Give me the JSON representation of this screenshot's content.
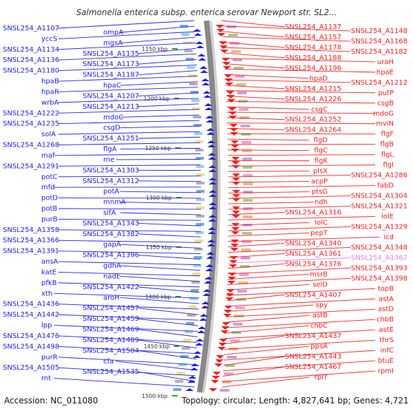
{
  "title": "Salmonella enterica subsp. enterica serovar Newport str. SL2...",
  "footer": {
    "accession": "Accession: NC_011080",
    "summary": "Topology: circular; Length: 4,827,641 bp; Genes: 4,721"
  },
  "colors": {
    "left_strand": "#1a1aff",
    "right_strand": "#ff1a1a",
    "pink_label": "#e080e0",
    "backbone": "#888888",
    "tick": "#2a9a2a"
  },
  "icons": [
    "plus-strand-arrow",
    "minus-strand-arrow",
    "cog-color-block"
  ],
  "kbp_ticks": [
    "1150 kbp",
    "1200 kbp",
    "1250 kbp",
    "1300 kbp",
    "1350 kbp",
    "1400 kbp",
    "1450 kbp",
    "1500 kbp"
  ],
  "left_labels": [
    "SNSL254_A1107",
    "ompA",
    "yccS",
    "mgsA",
    "SNSL254_A1134",
    "SNSL254_A1135",
    "SNSL254_A1136",
    "SNSL254_A1173",
    "SNSL254_A1180",
    "SNSL254_A1187",
    "hpaB",
    "hpaC",
    "hpaR",
    "SNSL254_A1207",
    "wrbA",
    "SNSL254_A1213",
    "SNSL254_A1222",
    "mdoC",
    "SNSL254_A1235",
    "csgD",
    "solA",
    "SNSL254_A1251",
    "SNSL254_A1268",
    "flgA",
    "maf",
    "rne",
    "SNSL254_A1291",
    "SNSL254_A1303",
    "potC",
    "SNSL254_A1312",
    "mfd",
    "potA",
    "potD",
    "mnmA",
    "potB",
    "sifA",
    "purB",
    "SNSL254_A1343",
    "SNSL254_A1358",
    "SNSL254_A1382",
    "SNSL254_A1366",
    "gapA",
    "SNSL254_A1391",
    "SNSL254_A1396",
    "ansA",
    "gdhA",
    "katE",
    "nadE",
    "pfkB",
    "SNSL254_A1422",
    "xth",
    "aroH",
    "SNSL254_A1436",
    "SNSL254_A1457",
    "SNSL254_A1442",
    "SNSL254_A1459",
    "lpp",
    "SNSL254_A1469",
    "SNSL254_A1476",
    "SNSL254_A1489",
    "SNSL254_A1498",
    "SNSL254_A1504",
    "purR",
    "cfa",
    "SNSL254_A1505",
    "SNSL254_A1535",
    "rnt"
  ],
  "right_labels": [
    "SNSL254_A1137",
    "SNSL254_A1148",
    "SNSL254_A1157",
    "SNSL254_A1168",
    "SNSL254_A1178",
    "SNSL254_A1182",
    "SNSL254_A1188",
    "uraH",
    "SNSL254_A1196",
    "hpaE",
    "hpaD",
    "SNSL254_A1212",
    "SNSL254_A1215",
    "putP",
    "SNSL254_A1226",
    "csgB",
    "csgC",
    "mdoG",
    "SNSL254_A1252",
    "mviN",
    "SNSL254_A1264",
    "flgF",
    "flgD",
    "flgB",
    "flgC",
    "flgL",
    "flgK",
    "flgI",
    "plsX",
    "SNSL254_A1286",
    "acpP",
    "fabD",
    "ptsG",
    "SNSL254_A1304",
    "ndh",
    "SNSL254_A1321",
    "SNSL254_A1316",
    "lolE",
    "lolC",
    "SNSL254_A1329",
    "pepT",
    "icd",
    "SNSL254_A1340",
    "SNSL254_A1348",
    "SNSL254_A1361",
    "SNSL254_A1367",
    "SNSL254_A1376",
    "SNSL254_A1393",
    "msrB",
    "SNSL254_A1398",
    "selD",
    "topB",
    "SNSL254_A1407",
    "astA",
    "spy",
    "astD",
    "astB",
    "chbB",
    "chbC",
    "astE",
    "SNSL254_A1437",
    "thrS",
    "ppsA",
    "infC",
    "SNSL254_A1443",
    "btuE",
    "SNSL254_A1467",
    "rpmI",
    "rplT"
  ]
}
